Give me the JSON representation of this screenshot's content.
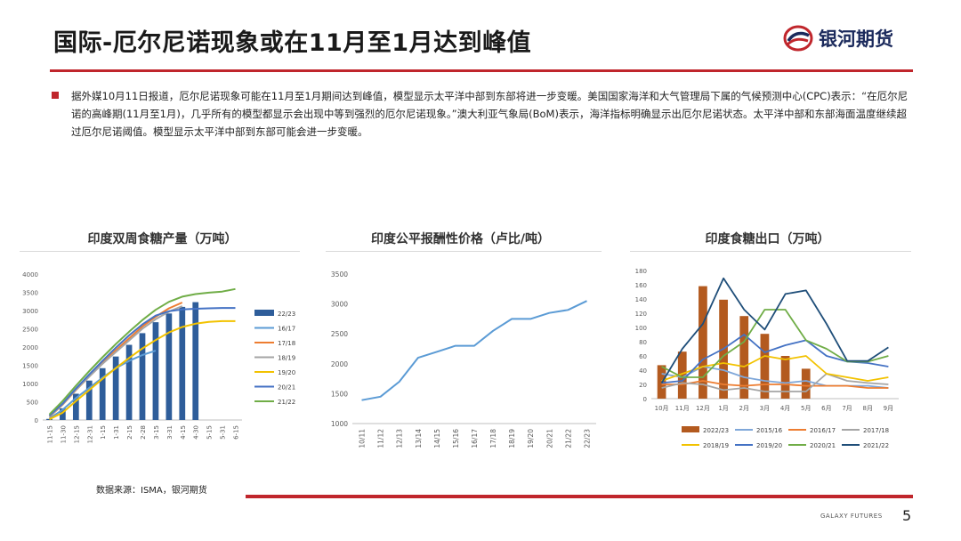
{
  "header": {
    "title": "国际-厄尔尼诺现象或在11月至1月达到峰值",
    "brand": "银河期货",
    "brand_red": "#c0262c",
    "brand_navy": "#1b2a5c"
  },
  "body": {
    "paragraph": "据外媒10月11日报道，厄尔尼诺现象可能在11月至1月期间达到峰值，模型显示太平洋中部到东部将进一步变暖。美国国家海洋和大气管理局下属的气候预测中心(CPC)表示：“在厄尔尼诺的高峰期(11月至1月)，几乎所有的模型都显示会出现中等到强烈的厄尔尼诺现象。”澳大利亚气象局(BoM)表示，海洋指标明确显示出厄尔尼诺状态。太平洋中部和东部海面温度继续超过厄尔尼诺阈值。模型显示太平洋中部到东部可能会进一步变暖。"
  },
  "footer": {
    "source": "数据来源：ISMA，银河期货",
    "brand_en": "GALAXY FUTURES",
    "page": "5"
  },
  "chart_data": [
    {
      "type": "bar+line",
      "title": "印度双周食糖产量（万吨）",
      "categories": [
        "11-15",
        "11-30",
        "12-15",
        "12-31",
        "1-15",
        "1-31",
        "2-15",
        "2-28",
        "3-15",
        "3-31",
        "4-15",
        "4-30",
        "5-15",
        "5-31",
        "6-15"
      ],
      "ylim": [
        0,
        4000
      ],
      "yticks": [
        0,
        500,
        1000,
        1500,
        2000,
        2500,
        3000,
        3500,
        4000
      ],
      "legend_position": "right",
      "series": [
        {
          "name": "22/23",
          "kind": "bar",
          "color": "#2e5d9a",
          "values": [
            30,
            320,
            720,
            1080,
            1420,
            1740,
            2060,
            2380,
            2680,
            2920,
            3100,
            3230,
            null,
            null,
            null
          ]
        },
        {
          "name": "16/17",
          "kind": "line",
          "color": "#5b9bd5",
          "values": [
            40,
            280,
            600,
            880,
            1160,
            1420,
            1620,
            1780,
            1900,
            null,
            null,
            null,
            null,
            null,
            null
          ]
        },
        {
          "name": "17/18",
          "kind": "line",
          "color": "#ed7d31",
          "values": [
            80,
            420,
            820,
            1190,
            1560,
            1910,
            2240,
            2560,
            2830,
            3060,
            3220,
            null,
            null,
            null,
            null
          ]
        },
        {
          "name": "18/19",
          "kind": "line",
          "color": "#a5a5a5",
          "values": [
            90,
            430,
            830,
            1190,
            1540,
            1860,
            2180,
            2500,
            2760,
            2970,
            3120,
            null,
            null,
            null,
            null
          ]
        },
        {
          "name": "19/20",
          "kind": "line",
          "color": "#f2c200",
          "values": [
            20,
            200,
            520,
            820,
            1130,
            1420,
            1700,
            1960,
            2190,
            2400,
            2550,
            2640,
            2690,
            2710,
            2710
          ]
        },
        {
          "name": "20/21",
          "kind": "line",
          "color": "#4472c4",
          "values": [
            120,
            450,
            860,
            1250,
            1620,
            1980,
            2320,
            2620,
            2860,
            2980,
            3030,
            3050,
            3060,
            3070,
            3070
          ]
        },
        {
          "name": "21/22",
          "kind": "line",
          "color": "#70ad47",
          "values": [
            150,
            520,
            940,
            1340,
            1720,
            2080,
            2420,
            2740,
            3020,
            3240,
            3380,
            3450,
            3490,
            3520,
            3590
          ]
        }
      ]
    },
    {
      "type": "line",
      "title": "印度公平报酬性价格（卢比/吨）",
      "categories": [
        "10/11",
        "11/12",
        "12/13",
        "13/14",
        "14/15",
        "15/16",
        "16/17",
        "17/18",
        "18/19",
        "19/20",
        "20/21",
        "21/22",
        "22/23"
      ],
      "ylim": [
        1000,
        3500
      ],
      "yticks": [
        1000,
        1500,
        2000,
        2500,
        3000,
        3500
      ],
      "series": [
        {
          "name": "",
          "color": "#5b9bd5",
          "values": [
            1392,
            1450,
            1700,
            2100,
            2200,
            2300,
            2300,
            2550,
            2750,
            2750,
            2850,
            2900,
            3050
          ]
        }
      ]
    },
    {
      "type": "bar+line",
      "title": "印度食糖出口（万吨）",
      "categories": [
        "10月",
        "11月",
        "12月",
        "1月",
        "2月",
        "3月",
        "4月",
        "5月",
        "6月",
        "7月",
        "8月",
        "9月"
      ],
      "ylim": [
        0,
        180
      ],
      "yticks": [
        0,
        20,
        40,
        60,
        80,
        100,
        120,
        140,
        160,
        180
      ],
      "legend_position": "bottom",
      "series": [
        {
          "name": "2022/23",
          "kind": "bar",
          "color": "#b35a1f",
          "values": [
            47,
            66,
            158,
            139,
            116,
            91,
            60,
            42,
            null,
            null,
            null,
            null
          ]
        },
        {
          "name": "2015/16",
          "kind": "line",
          "color": "#7fa7d9",
          "values": [
            35,
            30,
            45,
            40,
            30,
            25,
            22,
            25,
            18,
            18,
            18,
            15
          ]
        },
        {
          "name": "2016/17",
          "kind": "line",
          "color": "#ed7d31",
          "values": [
            20,
            20,
            25,
            20,
            18,
            20,
            20,
            18,
            18,
            18,
            15,
            15
          ]
        },
        {
          "name": "2017/18",
          "kind": "line",
          "color": "#a5a5a5",
          "values": [
            15,
            22,
            20,
            12,
            15,
            10,
            10,
            10,
            35,
            25,
            22,
            20
          ]
        },
        {
          "name": "2018/19",
          "kind": "line",
          "color": "#f2c200",
          "values": [
            25,
            35,
            45,
            50,
            45,
            60,
            55,
            60,
            35,
            30,
            25,
            30
          ]
        },
        {
          "name": "2019/20",
          "kind": "line",
          "color": "#4472c4",
          "values": [
            22,
            25,
            55,
            70,
            90,
            65,
            75,
            82,
            60,
            52,
            50,
            45
          ]
        },
        {
          "name": "2020/21",
          "kind": "line",
          "color": "#70ad47",
          "values": [
            45,
            30,
            30,
            60,
            80,
            125,
            125,
            82,
            70,
            52,
            52,
            60
          ]
        },
        {
          "name": "2021/22",
          "kind": "line",
          "color": "#1f4e79",
          "values": [
            22,
            70,
            105,
            169,
            125,
            97,
            147,
            152,
            105,
            53,
            53,
            72
          ]
        }
      ]
    }
  ]
}
